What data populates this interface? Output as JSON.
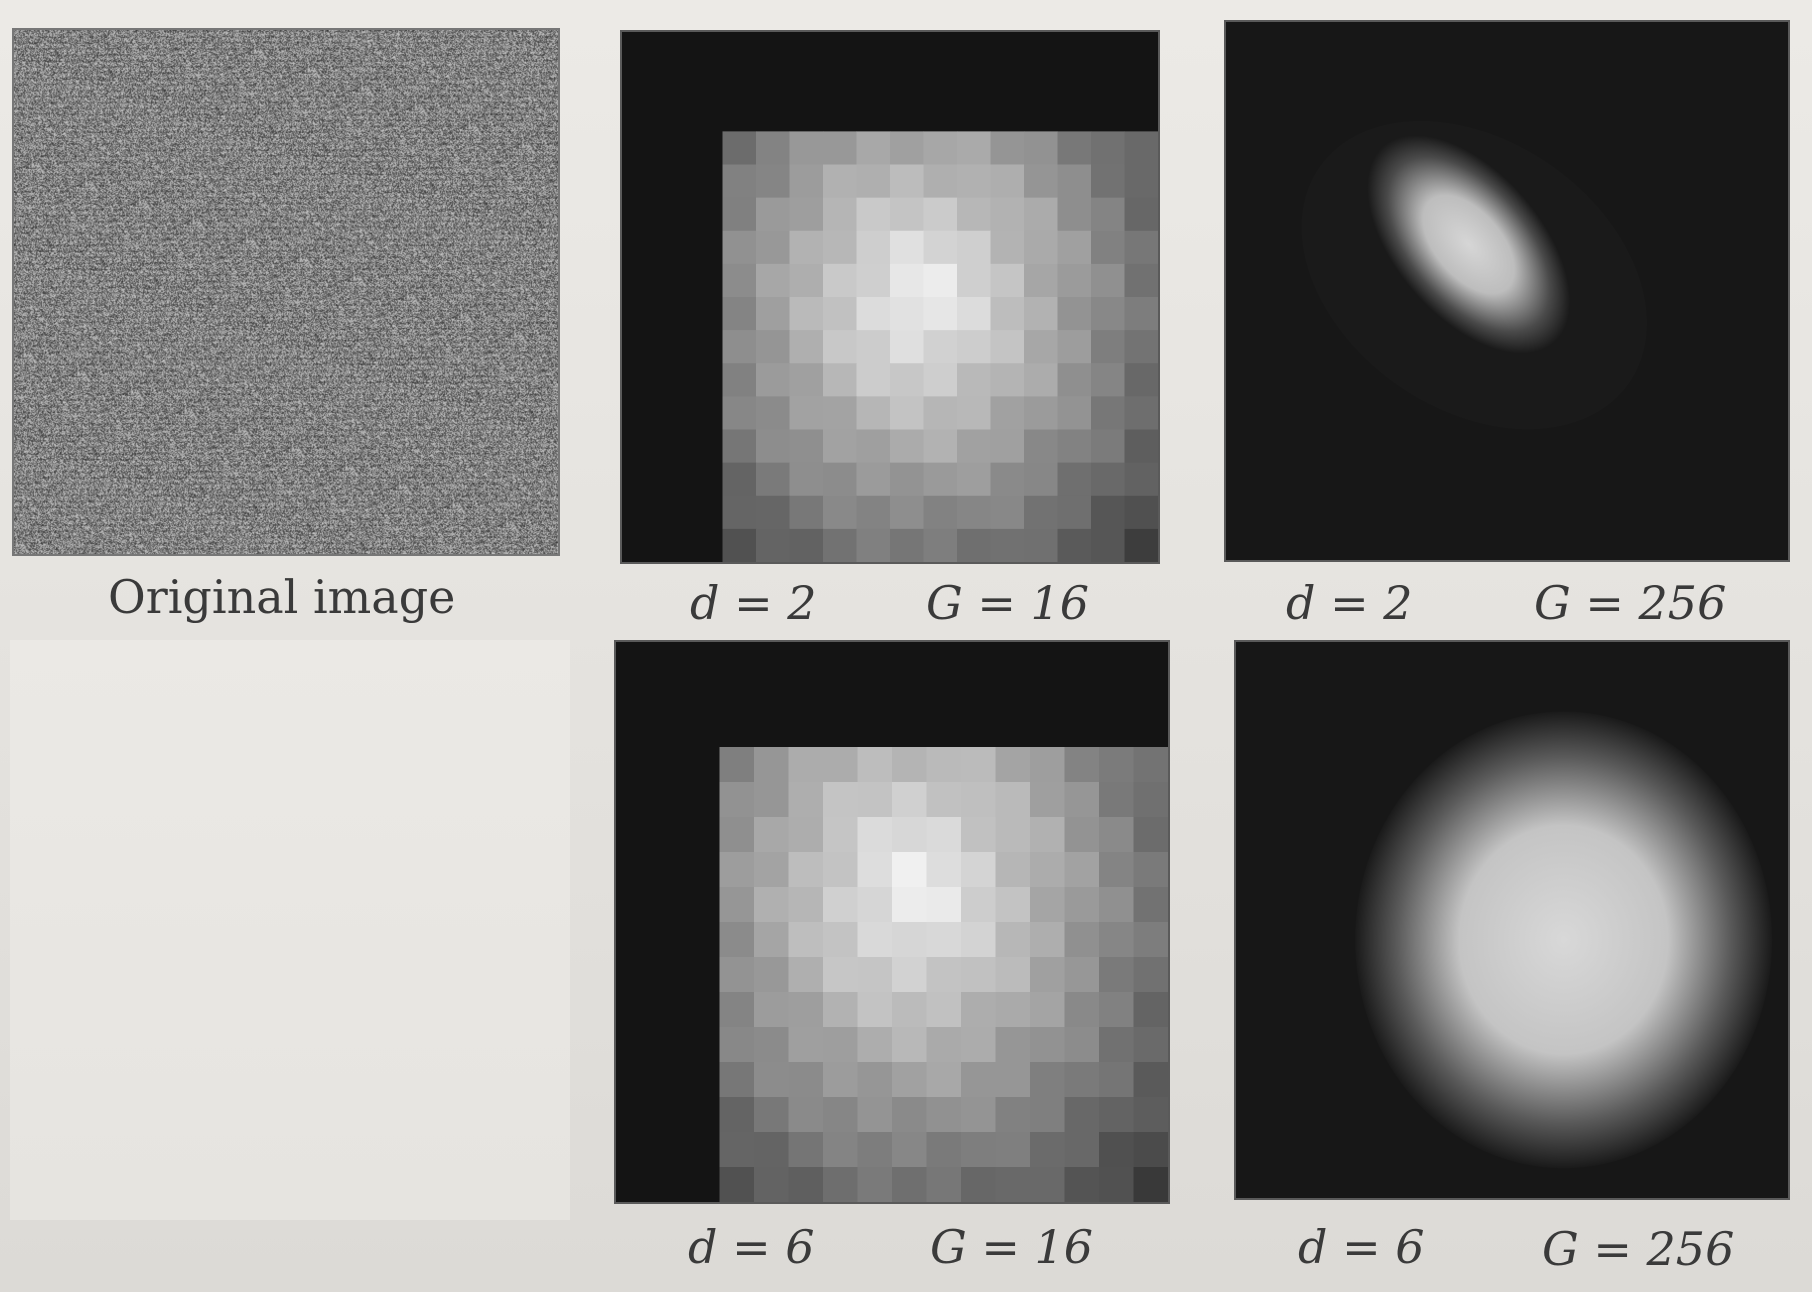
{
  "figure": {
    "original": {
      "caption": "Original image"
    },
    "panels": [
      {
        "d_label": "d = 2",
        "g_label": "G = 16"
      },
      {
        "d_label": "d = 2",
        "g_label": "G = 256"
      },
      {
        "d_label": "d = 6",
        "g_label": "G = 16"
      },
      {
        "d_label": "d = 6",
        "g_label": "G = 256"
      }
    ]
  }
}
